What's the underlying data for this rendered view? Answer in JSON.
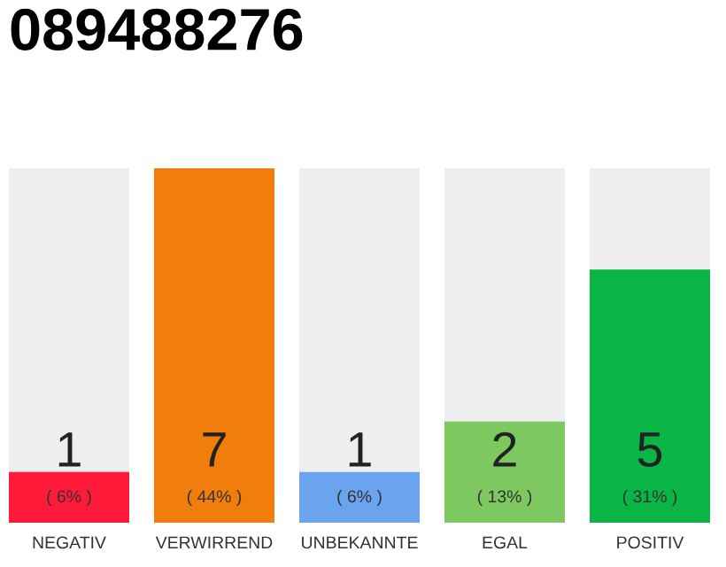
{
  "chart_data": {
    "type": "bar",
    "title": "089488276",
    "categories": [
      "NEGATIV",
      "VERWIRREND",
      "UNBEKANNTE",
      "EGAL",
      "POSITIV"
    ],
    "values": [
      1,
      7,
      1,
      2,
      5
    ],
    "colors": [
      "#ff1a3a",
      "#f07d0c",
      "#6aa4ee",
      "#7ec95f",
      "#0bb545"
    ],
    "data_labels": true,
    "annotations": [
      "( 6% )",
      "( 44% )",
      "( 6% )",
      "( 13% )",
      "( 31% )"
    ]
  }
}
